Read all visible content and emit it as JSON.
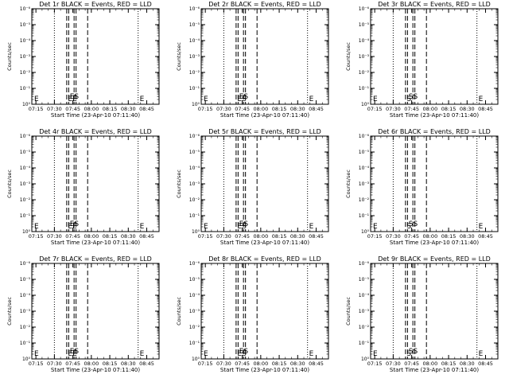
{
  "chart_data": [
    {
      "type": "line",
      "title": "Det 1r BLACK = Events, RED = LLD",
      "xlabel": "Start Time (23-Apr-10 07:11:40)",
      "ylabel": "Counts/sec",
      "xticks": [
        "07:15",
        "07:30",
        "07:45",
        "08:00",
        "08:15",
        "08:30",
        "08:45"
      ],
      "yticks": [
        "10⁰",
        "10⁻¹",
        "10⁻²",
        "10⁻³",
        "10⁻⁴",
        "10⁻⁵",
        "10⁻⁶"
      ],
      "marker_labels": [
        "E",
        "E"
      ],
      "bottom_annotations": [
        "EΕ",
        "ES"
      ],
      "x_range": [
        "07:11:40",
        "08:55"
      ],
      "y_scale": "log",
      "dotted_lines": [
        "07:30",
        "08:38",
        "08:55"
      ],
      "dashed_lines": [
        "07:40",
        "07:46",
        "07:57"
      ],
      "series": []
    },
    {
      "type": "line",
      "title": "Det 2r BLACK = Events, RED = LLD",
      "xlabel": "Start Time (23-Apr-10 07:11:40)",
      "ylabel": "Counts/sec",
      "xticks": [
        "07:15",
        "07:30",
        "07:45",
        "08:00",
        "08:15",
        "08:30",
        "08:45"
      ],
      "yticks": [
        "10⁰",
        "10⁻¹",
        "10⁻²",
        "10⁻³",
        "10⁻⁴",
        "10⁻⁵",
        "10⁻⁶"
      ],
      "marker_labels": [
        "E",
        "E"
      ],
      "bottom_annotations": [
        "ES",
        "ES"
      ],
      "x_range": [
        "07:11:40",
        "08:55"
      ],
      "y_scale": "log",
      "dotted_lines": [
        "07:30",
        "08:38",
        "08:55"
      ],
      "dashed_lines": [
        "07:40",
        "07:46",
        "07:57"
      ],
      "series": []
    },
    {
      "type": "line",
      "title": "Det 3r BLACK = Events, RED = LLD",
      "xlabel": "Start Time (23-Apr-10 07:11:40)",
      "ylabel": "Counts/sec",
      "xticks": [
        "07:15",
        "07:30",
        "07:45",
        "08:00",
        "08:15",
        "08:30",
        "08:45"
      ],
      "yticks": [
        "10⁰",
        "10⁻¹",
        "10⁻²",
        "10⁻³",
        "10⁻⁴",
        "10⁻⁵",
        "10⁻⁶"
      ],
      "marker_labels": [
        "E",
        "E"
      ],
      "bottom_annotations": [
        "S",
        "SS"
      ],
      "x_range": [
        "07:11:40",
        "08:55"
      ],
      "y_scale": "log",
      "dotted_lines": [
        "07:30",
        "08:38",
        "08:55"
      ],
      "dashed_lines": [
        "07:40",
        "07:46",
        "07:57"
      ],
      "series": []
    },
    {
      "type": "line",
      "title": "Det 4r BLACK = Events, RED = LLD",
      "xlabel": "Start Time (23-Apr-10 07:11:40)",
      "ylabel": "Counts/sec",
      "xticks": [
        "07:15",
        "07:30",
        "07:45",
        "08:00",
        "08:15",
        "08:30",
        "08:45"
      ],
      "yticks": [
        "10⁰",
        "10⁻¹",
        "10⁻²",
        "10⁻³",
        "10⁻⁴",
        "10⁻⁵",
        "10⁻⁶"
      ],
      "marker_labels": [
        "E",
        "E"
      ],
      "bottom_annotations": [
        "EΕ",
        "ES"
      ],
      "x_range": [
        "07:11:40",
        "08:55"
      ],
      "y_scale": "log",
      "dotted_lines": [
        "07:30",
        "08:38",
        "08:55"
      ],
      "dashed_lines": [
        "07:40",
        "07:46",
        "07:57"
      ],
      "series": []
    },
    {
      "type": "line",
      "title": "Det 5r BLACK = Events, RED = LLD",
      "xlabel": "Start Time (23-Apr-10 07:11:40)",
      "ylabel": "Counts/sec",
      "xticks": [
        "07:15",
        "07:30",
        "07:45",
        "08:00",
        "08:15",
        "08:30",
        "08:45"
      ],
      "yticks": [
        "10⁰",
        "10⁻¹",
        "10⁻²",
        "10⁻³",
        "10⁻⁴",
        "10⁻⁵",
        "10⁻⁶"
      ],
      "marker_labels": [
        "E",
        "E"
      ],
      "bottom_annotations": [
        "ES",
        "ES"
      ],
      "x_range": [
        "07:11:40",
        "08:55"
      ],
      "y_scale": "log",
      "dotted_lines": [
        "07:30",
        "08:38",
        "08:55"
      ],
      "dashed_lines": [
        "07:40",
        "07:46",
        "07:57"
      ],
      "series": []
    },
    {
      "type": "line",
      "title": "Det 6r BLACK = Events, RED = LLD",
      "xlabel": "Start Time (23-Apr-10 07:11:40)",
      "ylabel": "Counts/sec",
      "xticks": [
        "07:15",
        "07:30",
        "07:45",
        "08:00",
        "08:15",
        "08:30",
        "08:45"
      ],
      "yticks": [
        "10⁰",
        "10⁻¹",
        "10⁻²",
        "10⁻³",
        "10⁻⁴",
        "10⁻⁵",
        "10⁻⁶"
      ],
      "marker_labels": [
        "E",
        "E"
      ],
      "bottom_annotations": [
        "S",
        "SS"
      ],
      "x_range": [
        "07:11:40",
        "08:55"
      ],
      "y_scale": "log",
      "dotted_lines": [
        "07:30",
        "08:38",
        "08:55"
      ],
      "dashed_lines": [
        "07:40",
        "07:46",
        "07:57"
      ],
      "series": []
    },
    {
      "type": "line",
      "title": "Det 7r BLACK = Events, RED = LLD",
      "xlabel": "Start Time (23-Apr-10 07:11:40)",
      "ylabel": "Counts/sec",
      "xticks": [
        "07:15",
        "07:30",
        "07:45",
        "08:00",
        "08:15",
        "08:30",
        "08:45"
      ],
      "yticks": [
        "10⁰",
        "10⁻¹",
        "10⁻²",
        "10⁻³",
        "10⁻⁴",
        "10⁻⁵",
        "10⁻⁶"
      ],
      "marker_labels": [
        "E",
        "E"
      ],
      "bottom_annotations": [
        "EΕ",
        "ES"
      ],
      "x_range": [
        "07:11:40",
        "08:55"
      ],
      "y_scale": "log",
      "dotted_lines": [
        "07:30",
        "08:38",
        "08:55"
      ],
      "dashed_lines": [
        "07:40",
        "07:46",
        "07:57"
      ],
      "series": []
    },
    {
      "type": "line",
      "title": "Det 8r BLACK = Events, RED = LLD",
      "xlabel": "Start Time (23-Apr-10 07:11:40)",
      "ylabel": "Counts/sec",
      "xticks": [
        "07:15",
        "07:30",
        "07:45",
        "08:00",
        "08:15",
        "08:30",
        "08:45"
      ],
      "yticks": [
        "10⁰",
        "10⁻¹",
        "10⁻²",
        "10⁻³",
        "10⁻⁴",
        "10⁻⁵",
        "10⁻⁶"
      ],
      "marker_labels": [
        "E",
        "E"
      ],
      "bottom_annotations": [
        "ES",
        "ES"
      ],
      "x_range": [
        "07:11:40",
        "08:55"
      ],
      "y_scale": "log",
      "dotted_lines": [
        "07:30",
        "08:38",
        "08:55"
      ],
      "dashed_lines": [
        "07:40",
        "07:46",
        "07:57"
      ],
      "series": []
    },
    {
      "type": "line",
      "title": "Det 9r BLACK = Events, RED = LLD",
      "xlabel": "Start Time (23-Apr-10 07:11:40)",
      "ylabel": "Counts/sec",
      "xticks": [
        "07:15",
        "07:30",
        "07:45",
        "08:00",
        "08:15",
        "08:30",
        "08:45"
      ],
      "yticks": [
        "10⁰",
        "10⁻¹",
        "10⁻²",
        "10⁻³",
        "10⁻⁴",
        "10⁻⁵",
        "10⁻⁶"
      ],
      "marker_labels": [
        "E",
        "E"
      ],
      "bottom_annotations": [
        "S",
        "SS"
      ],
      "x_range": [
        "07:11:40",
        "08:55"
      ],
      "y_scale": "log",
      "dotted_lines": [
        "07:30",
        "08:38",
        "08:55"
      ],
      "dashed_lines": [
        "07:40",
        "07:46",
        "07:57"
      ],
      "series": []
    }
  ]
}
